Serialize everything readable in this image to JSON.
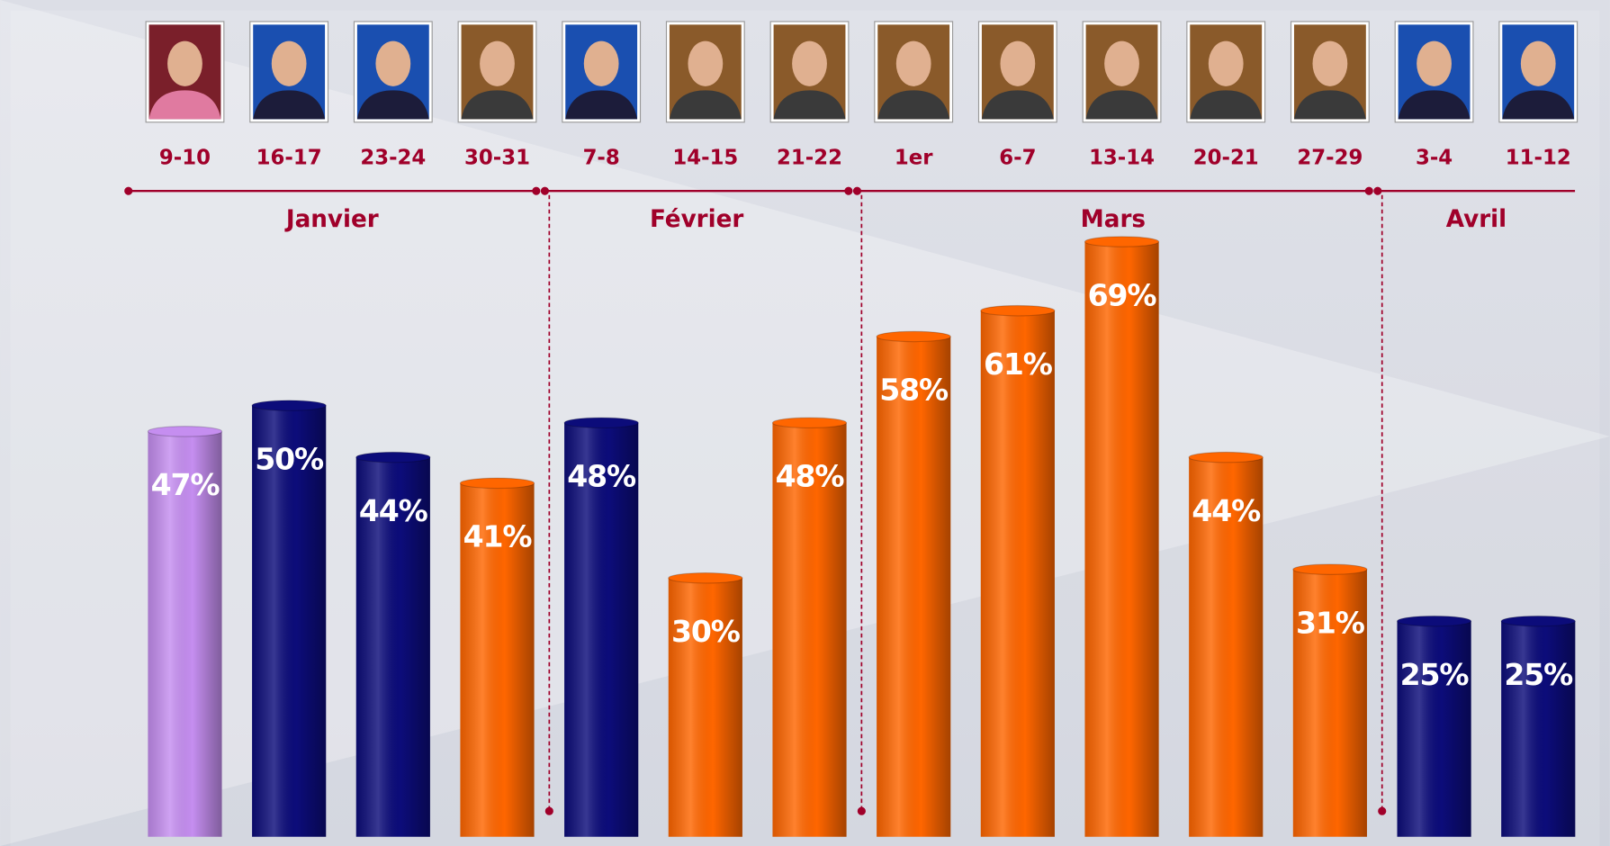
{
  "chart_data": {
    "type": "bar",
    "categories": [
      "9-10",
      "16-17",
      "23-24",
      "30-31",
      "7-8",
      "14-15",
      "21-22",
      "1er",
      "6-7",
      "13-14",
      "20-21",
      "27-29",
      "3-4",
      "11-12"
    ],
    "values": [
      47,
      50,
      44,
      41,
      48,
      30,
      48,
      58,
      61,
      69,
      44,
      31,
      25,
      25
    ],
    "value_labels": [
      "47%",
      "50%",
      "44%",
      "41%",
      "48%",
      "30%",
      "48%",
      "58%",
      "61%",
      "69%",
      "44%",
      "31%",
      "25%",
      "25%"
    ],
    "colors": [
      "#c58ef0",
      "#0c0c7a",
      "#0c0c7a",
      "#ff6600",
      "#0c0c7a",
      "#ff6600",
      "#ff6600",
      "#ff6600",
      "#ff6600",
      "#ff6600",
      "#ff6600",
      "#ff6600",
      "#0c0c7a",
      "#0c0c7a"
    ],
    "months": [
      "Janvier",
      "Février",
      "Mars",
      "Avril"
    ]
  }
}
